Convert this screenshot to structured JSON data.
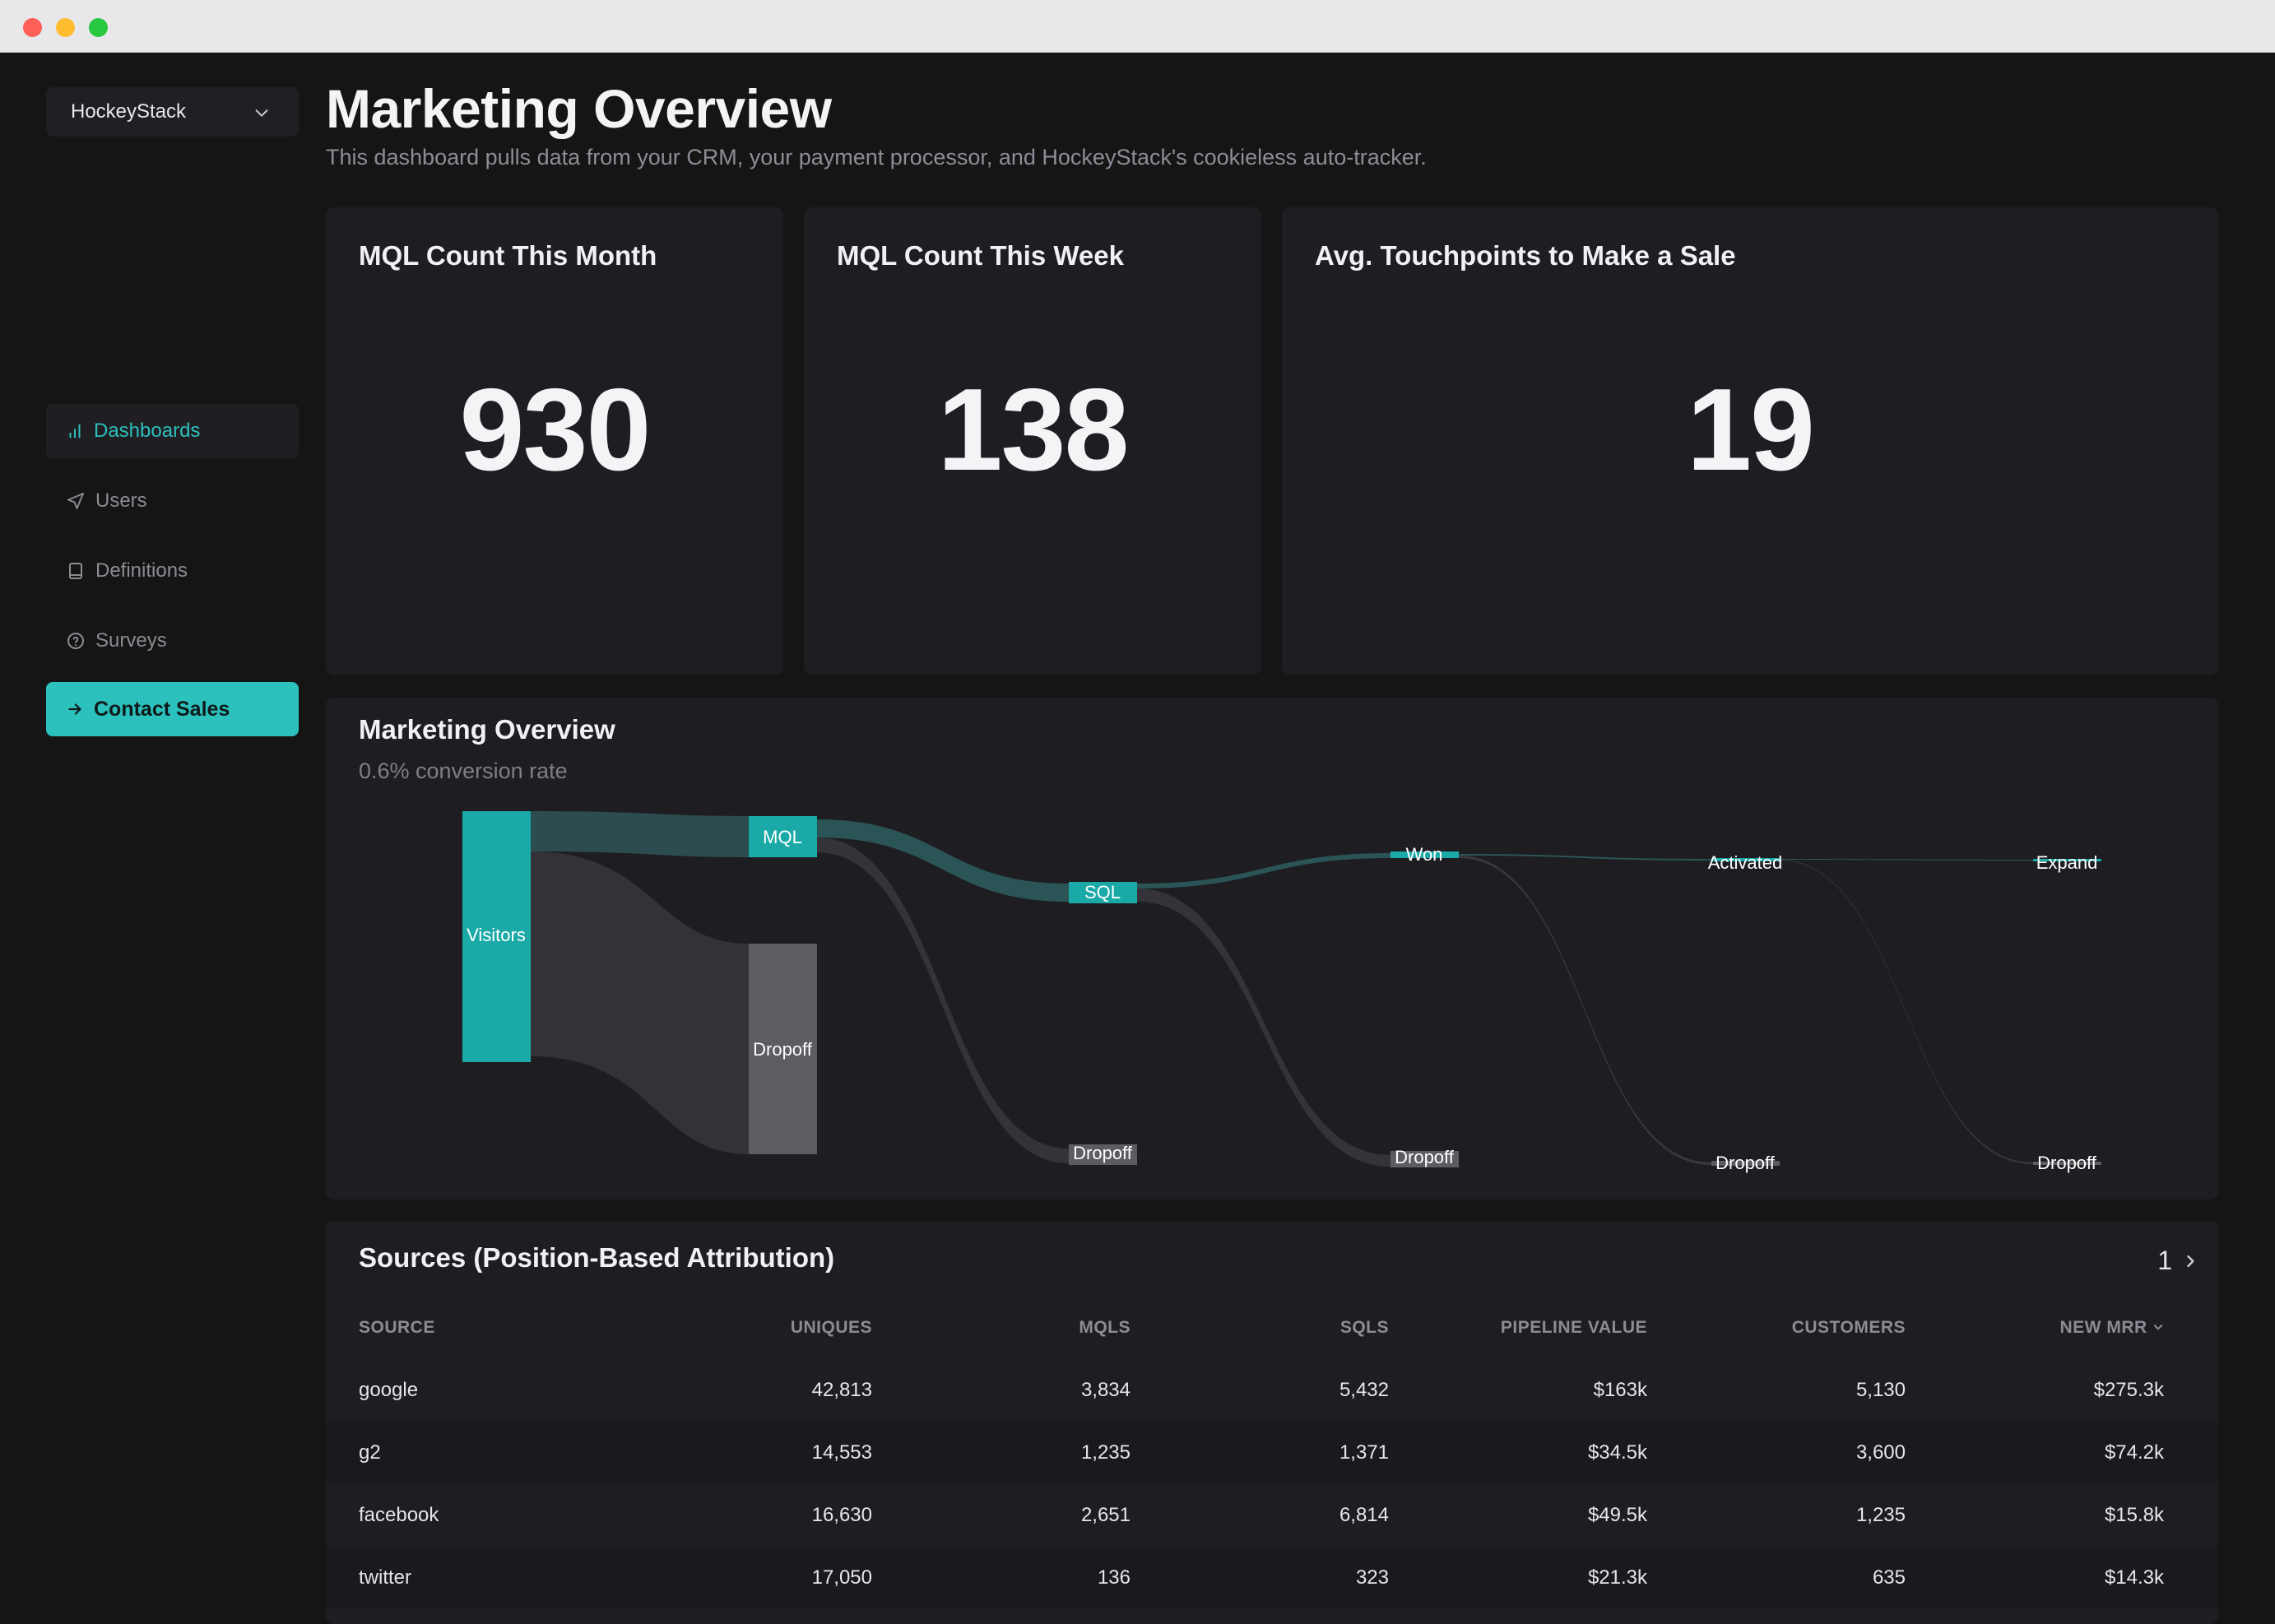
{
  "workspace": {
    "name": "HockeyStack"
  },
  "sidebar": {
    "items": [
      {
        "label": "Dashboards",
        "icon": "bar-chart-icon",
        "active": true
      },
      {
        "label": "Users",
        "icon": "send-icon"
      },
      {
        "label": "Definitions",
        "icon": "book-icon"
      },
      {
        "label": "Surveys",
        "icon": "help-circle-icon"
      }
    ],
    "cta": {
      "label": "Contact Sales",
      "icon": "arrow-right-icon"
    }
  },
  "header": {
    "title": "Marketing Overview",
    "subtitle": "This dashboard pulls data from your CRM, your payment processor, and HockeyStack's cookieless auto-tracker."
  },
  "kpis": [
    {
      "title": "MQL Count This Month",
      "value": "930"
    },
    {
      "title": "MQL Count This Week",
      "value": "138"
    },
    {
      "title": "Avg. Touchpoints to Make a Sale",
      "value": "19"
    }
  ],
  "sankey": {
    "title": "Marketing Overview",
    "subtitle": "0.6% conversion rate",
    "nodes": {
      "visitors": "Visitors",
      "mql": "MQL",
      "dropoff1": "Dropoff",
      "sql": "SQL",
      "dropoff2": "Dropoff",
      "won": "Won",
      "dropoff3": "Dropoff",
      "activated": "Activated",
      "dropoff4": "Dropoff",
      "expand": "Expand",
      "dropoff5": "Dropoff"
    },
    "colors": {
      "accent": "#1ba9a7",
      "dropoff_node": "#5d5c62"
    }
  },
  "sources": {
    "title": "Sources (Position-Based Attribution)",
    "page": "1",
    "columns": [
      "SOURCE",
      "UNIQUES",
      "MQLS",
      "SQLS",
      "PIPELINE VALUE",
      "CUSTOMERS",
      "NEW MRR"
    ],
    "rows": [
      [
        "google",
        "42,813",
        "3,834",
        "5,432",
        "$163k",
        "5,130",
        "$275.3k"
      ],
      [
        "g2",
        "14,553",
        "1,235",
        "1,371",
        "$34.5k",
        "3,600",
        "$74.2k"
      ],
      [
        "facebook",
        "16,630",
        "2,651",
        "6,814",
        "$49.5k",
        "1,235",
        "$15.8k"
      ],
      [
        "twitter",
        "17,050",
        "136",
        "323",
        "$21.3k",
        "635",
        "$14.3k"
      ]
    ]
  }
}
